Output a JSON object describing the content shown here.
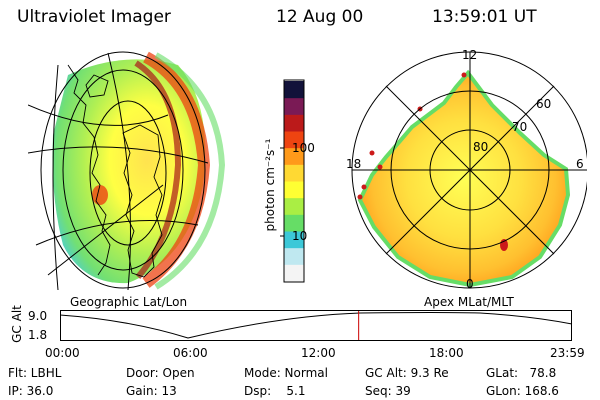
{
  "header": {
    "instrument": "Ultraviolet Imager",
    "date": "12 Aug 00",
    "time": "13:59:01 UT"
  },
  "left_panel": {
    "caption": "Geographic Lat/Lon"
  },
  "right_panel": {
    "caption": "Apex MLat/MLT",
    "lat_labels": [
      "80",
      "70",
      "60"
    ],
    "mlt_labels": [
      "12",
      "18",
      "6",
      "0"
    ]
  },
  "colorbar": {
    "unit_label": "photon cm⁻²s⁻¹",
    "ticks": [
      "100",
      "10"
    ],
    "colors": [
      "#f4f4f4",
      "#bfe8f0",
      "#3cc8d8",
      "#66dd66",
      "#aaee44",
      "#ffff33",
      "#ffd933",
      "#ff9a1a",
      "#ee4411",
      "#bb1a1a",
      "#7a1a55",
      "#12123a"
    ]
  },
  "altitude_plot": {
    "axis_label": "GC Alt",
    "y_ticks": [
      "9.0",
      "1.8"
    ],
    "x_ticks": [
      "00:00",
      "06:00",
      "12:00",
      "18:00",
      "23:59"
    ],
    "current_time_hours": 14.0,
    "marker_color": "#cc0000"
  },
  "footer": {
    "flt": "Flt: LBHL",
    "ip": "IP: 36.0",
    "door": "Door: Open",
    "gain": "Gain: 13",
    "mode": "Mode: Normal",
    "dsp": "Dsp:    5.1",
    "gc_alt": "GC Alt: 9.3 Re",
    "seq": "Seq: 39",
    "glat": "GLat:   78.8",
    "glon": "GLon: 168.6"
  }
}
